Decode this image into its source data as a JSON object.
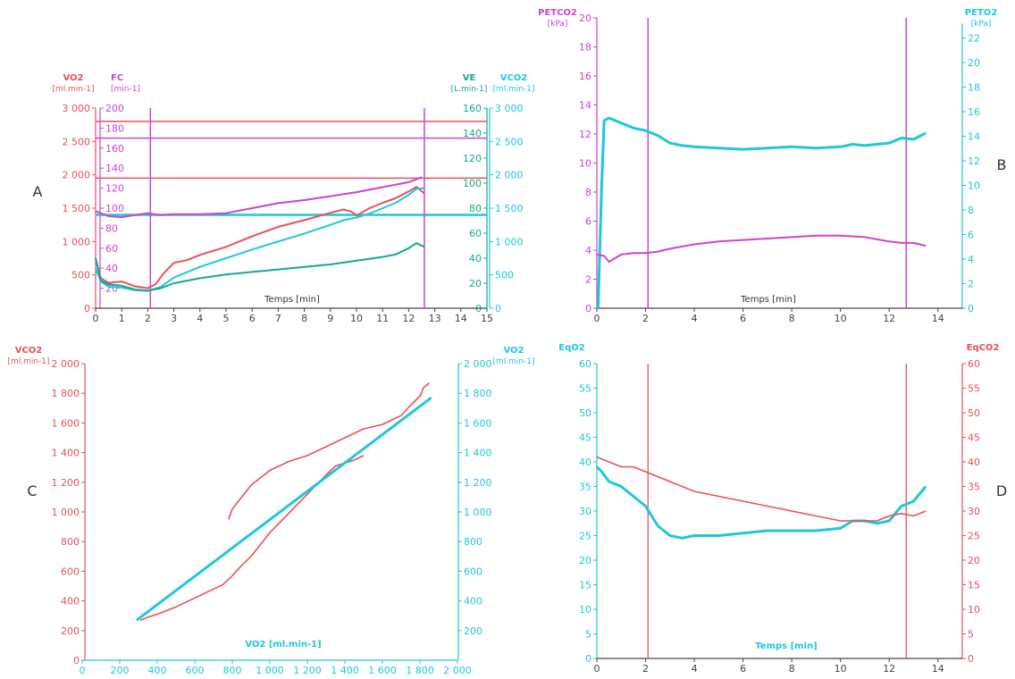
{
  "colors": {
    "red": "#e8505a",
    "magenta": "#cc44cc",
    "cyan": "#1ec8d8",
    "teal": "#14a890",
    "axis": "#444444"
  },
  "chart_data": [
    {
      "panel": "A",
      "type": "line",
      "xlabel": "Temps [min]",
      "xlim": [
        0,
        15
      ],
      "xticks": [
        0,
        1,
        2,
        3,
        4,
        5,
        6,
        7,
        8,
        9,
        10,
        11,
        12,
        13,
        14,
        15
      ],
      "axes": {
        "vo2": {
          "label": "VO2",
          "unit": "[ml.min-1]",
          "lim": [
            0,
            3000
          ],
          "ticks": [
            0,
            500,
            1000,
            1500,
            2000,
            2500,
            3000
          ],
          "tick_labels": [
            "0",
            "500",
            "1 000",
            "1 500",
            "2 000",
            "2 500",
            "3 000"
          ]
        },
        "fc": {
          "label": "FC",
          "unit": "[min-1]",
          "lim": [
            0,
            200
          ],
          "ticks": [
            20,
            40,
            60,
            80,
            100,
            120,
            140,
            160,
            180,
            200
          ],
          "tick_labels": [
            "20",
            "40",
            "60",
            "80",
            "100",
            "120",
            "140",
            "160",
            "180",
            "200"
          ]
        },
        "ve": {
          "label": "VE",
          "unit": "[L.min-1]",
          "lim": [
            0,
            160
          ],
          "ticks": [
            0,
            20,
            40,
            60,
            80,
            100,
            120,
            140,
            160
          ],
          "tick_labels": [
            "0",
            "20",
            "40",
            "60",
            "80",
            "100",
            "120",
            "140",
            "160"
          ]
        },
        "vco2": {
          "label": "VCO2",
          "unit": "[ml.min-1]",
          "lim": [
            0,
            3000
          ],
          "ticks": [
            0,
            500,
            1000,
            1500,
            2000,
            2500,
            3000
          ],
          "tick_labels": [
            "0",
            "500",
            "1 000",
            "1 500",
            "2 000",
            "2 500",
            "3 000"
          ]
        }
      },
      "vlines_x": [
        2.1,
        12.6
      ],
      "hlines": [
        {
          "axis": "vo2",
          "y": 2800,
          "color": "red"
        },
        {
          "axis": "fc",
          "y": 170,
          "color": "magenta"
        },
        {
          "axis": "vo2",
          "y": 1950,
          "color": "red"
        },
        {
          "axis": "vo2",
          "y": 1400,
          "color": "cyan"
        }
      ],
      "series": [
        {
          "axis": "fc",
          "color": "magenta",
          "x": [
            0,
            0.5,
            1,
            1.5,
            2,
            2.5,
            3,
            4,
            5,
            6,
            7,
            8,
            9,
            10,
            11,
            12,
            12.5
          ],
          "y": [
            97,
            92,
            91,
            93,
            95,
            93,
            94,
            94,
            95,
            100,
            105,
            108,
            112,
            116,
            121,
            126,
            131
          ]
        },
        {
          "axis": "vo2",
          "color": "red",
          "x": [
            0,
            0.2,
            0.5,
            1,
            1.5,
            2,
            2.3,
            2.6,
            3,
            3.5,
            4,
            5,
            6,
            7,
            8,
            9,
            9.5,
            9.8,
            10,
            10.5,
            11,
            11.5,
            12,
            12.3,
            12.6
          ],
          "y": [
            750,
            450,
            380,
            400,
            330,
            300,
            360,
            520,
            680,
            720,
            800,
            920,
            1080,
            1220,
            1320,
            1430,
            1480,
            1450,
            1390,
            1500,
            1580,
            1650,
            1750,
            1820,
            1720
          ]
        },
        {
          "axis": "vco2",
          "color": "cyan",
          "x": [
            0,
            0.2,
            0.5,
            1,
            1.5,
            2,
            2.5,
            3,
            3.5,
            4,
            5,
            6,
            7,
            8,
            9,
            9.5,
            10,
            10.5,
            11,
            11.5,
            12,
            12.3,
            12.6
          ],
          "y": [
            600,
            400,
            320,
            310,
            270,
            260,
            320,
            460,
            540,
            620,
            750,
            880,
            1000,
            1120,
            1250,
            1320,
            1360,
            1420,
            1500,
            1580,
            1700,
            1790,
            1800
          ]
        },
        {
          "axis": "ve",
          "color": "teal",
          "x": [
            0,
            0.2,
            0.5,
            1,
            1.5,
            2,
            2.5,
            3,
            4,
            5,
            6,
            7,
            8,
            9,
            10,
            11,
            11.5,
            12,
            12.3,
            12.6
          ],
          "y": [
            40,
            22,
            19,
            18,
            15,
            14,
            16,
            20,
            24,
            27,
            29,
            31,
            33,
            35,
            38,
            41,
            43,
            48,
            52,
            49
          ]
        }
      ]
    },
    {
      "panel": "B",
      "type": "line",
      "xlabel": "Temps [min]",
      "xlim": [
        0,
        15
      ],
      "xticks": [
        0,
        2,
        4,
        6,
        8,
        10,
        12,
        14
      ],
      "axes": {
        "petco2": {
          "label": "PETCO2",
          "unit": "[kPa]",
          "lim": [
            0,
            20
          ],
          "ticks": [
            0,
            2,
            4,
            6,
            8,
            10,
            12,
            14,
            16,
            18,
            20
          ]
        },
        "peto2": {
          "label": "PETO2",
          "unit": "[kPa]",
          "lim": [
            0,
            23.2
          ],
          "ticks": [
            0,
            2,
            4,
            6,
            8,
            10,
            12,
            14,
            16,
            18,
            20,
            22
          ]
        }
      },
      "vlines_x": [
        2.1,
        12.7
      ],
      "series": [
        {
          "axis": "peto2",
          "color": "cyan",
          "x": [
            0.05,
            0.2,
            0.3,
            0.5,
            1,
            1.5,
            2,
            2.5,
            3,
            3.5,
            4,
            5,
            6,
            7,
            8,
            9,
            10,
            10.5,
            11,
            12,
            12.5,
            13,
            13.5
          ],
          "y": [
            0,
            10,
            15,
            15.2,
            14.8,
            14.4,
            14.2,
            13.8,
            13.2,
            13,
            12.9,
            12.8,
            12.7,
            12.8,
            12.9,
            12.8,
            12.9,
            13.1,
            13,
            13.2,
            13.6,
            13.5,
            14
          ]
        },
        {
          "axis": "petco2",
          "color": "magenta",
          "x": [
            0,
            0.3,
            0.5,
            1,
            1.5,
            2,
            2.5,
            3,
            4,
            5,
            6,
            7,
            8,
            9,
            10,
            11,
            12,
            12.5,
            13,
            13.5
          ],
          "y": [
            3.7,
            3.6,
            3.2,
            3.7,
            3.8,
            3.8,
            3.9,
            4.1,
            4.4,
            4.6,
            4.7,
            4.8,
            4.9,
            5.0,
            5.0,
            4.9,
            4.6,
            4.5,
            4.5,
            4.3
          ]
        }
      ]
    },
    {
      "panel": "C",
      "type": "scatter",
      "xlabel": "VO2 [ml.min-1]",
      "xlim": [
        0,
        2000
      ],
      "xticks": [
        0,
        200,
        400,
        600,
        800,
        1000,
        1200,
        1400,
        1600,
        1800,
        2000
      ],
      "xtick_labels": [
        "0",
        "200",
        "400",
        "600",
        "800",
        "1 000",
        "1 200",
        "1 400",
        "1 600",
        "1 800",
        "2 000"
      ],
      "axes": {
        "vco2": {
          "label": "VCO2",
          "unit": "[ml.min-1]",
          "lim": [
            0,
            2000
          ],
          "ticks": [
            0,
            200,
            400,
            600,
            800,
            1000,
            1200,
            1400,
            1600,
            1800,
            2000
          ],
          "tick_labels": [
            "0",
            "200",
            "400",
            "600",
            "800",
            "1 000",
            "1 200",
            "1 400",
            "1 600",
            "1 800",
            "2 000"
          ]
        },
        "vo2": {
          "label": "VO2",
          "unit": "[ml.min-1]",
          "lim": [
            0,
            2000
          ],
          "ticks": [
            200,
            400,
            600,
            800,
            1000,
            1200,
            1400,
            1600,
            1800,
            2000
          ],
          "tick_labels": [
            "200",
            "400",
            "600",
            "800",
            "1 000",
            "1 200",
            "1 400",
            "1 600",
            "1 800",
            "2 000"
          ]
        }
      },
      "series": [
        {
          "axis": "vco2",
          "color": "red",
          "x": [
            310,
            350,
            400,
            500,
            600,
            700,
            750,
            800,
            850,
            900,
            950,
            1000,
            1100,
            1200,
            1300,
            1350,
            1400,
            1450,
            1500
          ],
          "y": [
            270,
            290,
            310,
            360,
            420,
            480,
            510,
            570,
            640,
            700,
            780,
            860,
            990,
            1120,
            1250,
            1310,
            1330,
            1350,
            1380
          ]
        },
        {
          "axis": "vco2",
          "color": "red",
          "x": [
            780,
            800,
            850,
            900,
            1000,
            1100,
            1200,
            1300,
            1400,
            1500,
            1600,
            1700,
            1750,
            1800,
            1820,
            1850
          ],
          "y": [
            950,
            1020,
            1100,
            1180,
            1280,
            1340,
            1380,
            1440,
            1500,
            1560,
            1590,
            1650,
            1720,
            1780,
            1840,
            1870
          ]
        },
        {
          "axis": "vco2",
          "color": "cyan",
          "x": [
            290,
            1860
          ],
          "y": [
            270,
            1770
          ]
        }
      ]
    },
    {
      "panel": "D",
      "type": "line",
      "xlabel": "Temps [min]",
      "xlim": [
        0,
        15
      ],
      "xticks": [
        0,
        2,
        4,
        6,
        8,
        10,
        12,
        14
      ],
      "axes": {
        "eqo2": {
          "label": "EqO2",
          "unit": "",
          "lim": [
            0,
            60
          ],
          "ticks": [
            0,
            5,
            10,
            15,
            20,
            25,
            30,
            35,
            40,
            45,
            50,
            55,
            60
          ]
        },
        "eqco2": {
          "label": "EqCO2",
          "unit": "",
          "lim": [
            0,
            60
          ],
          "ticks": [
            0,
            5,
            10,
            15,
            20,
            25,
            30,
            35,
            40,
            45,
            50,
            55,
            60
          ]
        }
      },
      "vlines_x": [
        2.1,
        12.7
      ],
      "series": [
        {
          "axis": "eqo2",
          "color": "cyan",
          "x": [
            0,
            0.2,
            0.5,
            1,
            1.5,
            2,
            2.5,
            3,
            3.5,
            4,
            5,
            6,
            7,
            8,
            9,
            10,
            10.5,
            11,
            11.5,
            12,
            12.5,
            13,
            13.5
          ],
          "y": [
            39,
            38,
            36,
            35,
            33,
            31,
            27,
            25,
            24.5,
            25,
            25,
            25.5,
            26,
            26,
            26,
            26.5,
            28,
            28,
            27.5,
            28,
            31,
            32,
            35
          ]
        },
        {
          "axis": "eqco2",
          "color": "red",
          "x": [
            0,
            0.5,
            1,
            1.5,
            2,
            2.5,
            3,
            4,
            5,
            6,
            7,
            8,
            9,
            10,
            11,
            11.5,
            12,
            12.5,
            13,
            13.5
          ],
          "y": [
            41,
            40,
            39,
            39,
            38,
            37,
            36,
            34,
            33,
            32,
            31,
            30,
            29,
            28,
            28,
            28,
            29,
            29.5,
            29,
            30
          ]
        }
      ]
    }
  ],
  "panel_letters": [
    "A",
    "B",
    "C",
    "D"
  ]
}
